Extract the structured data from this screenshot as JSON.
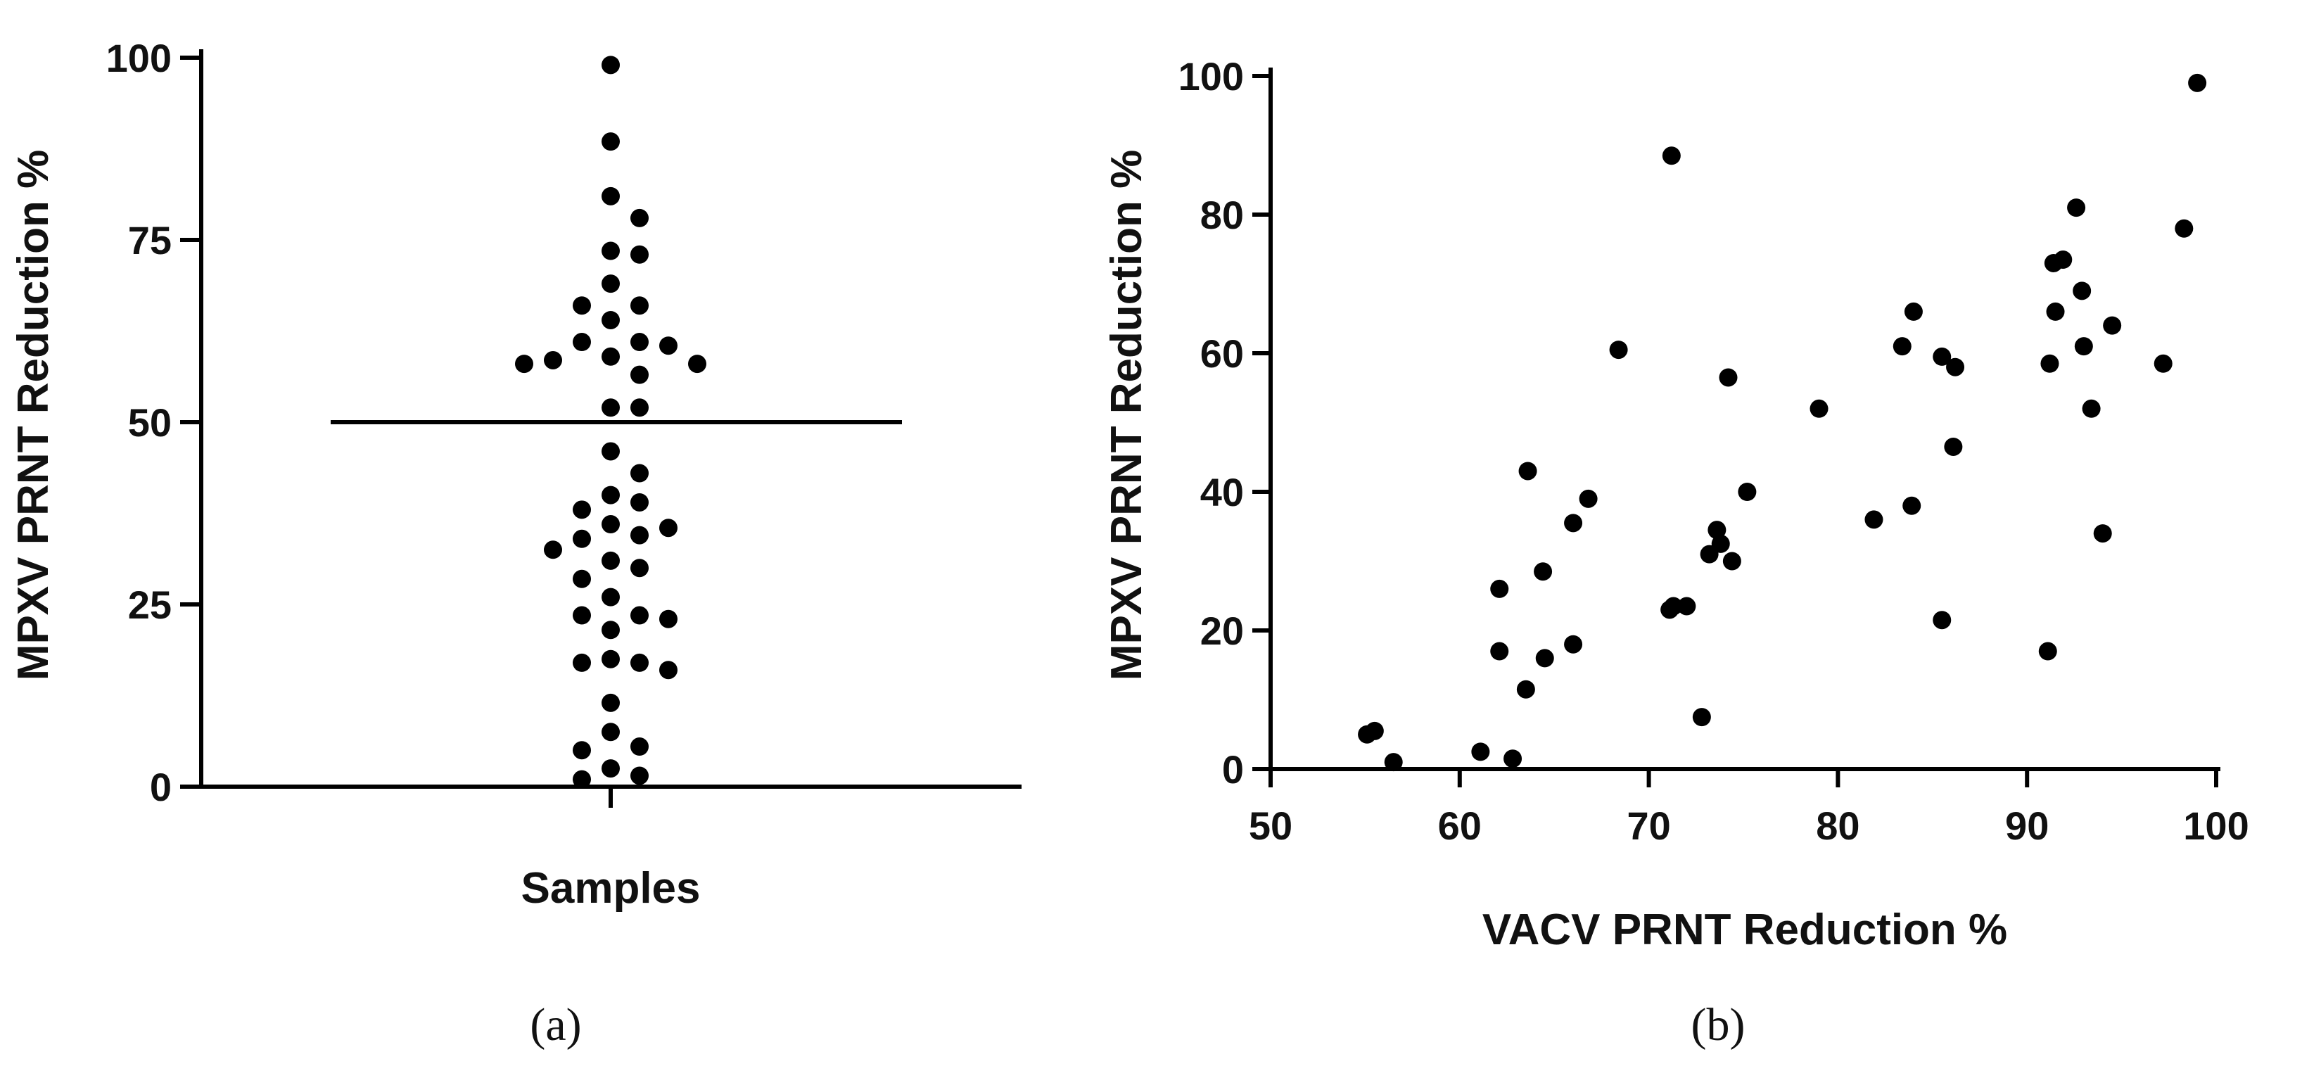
{
  "chart_data": [
    {
      "panel_label": "(a)",
      "type": "scatter",
      "subtype": "dot-strip",
      "xlabel": "Samples",
      "ylabel": "MPXV PRNT Reduction %",
      "ylim": [
        0,
        100
      ],
      "yticks": [
        0,
        25,
        50,
        75,
        100
      ],
      "xticks": [
        ""
      ],
      "mean_line": 50,
      "values": [
        99,
        88.5,
        81,
        78,
        73.5,
        73,
        69,
        66,
        66,
        64,
        61,
        60.5,
        61,
        59,
        58.5,
        58,
        58,
        56.5,
        52,
        52,
        46,
        43,
        40,
        39,
        38,
        36,
        35.5,
        34.5,
        34,
        32.5,
        31,
        30,
        28.5,
        26,
        23.5,
        23.5,
        23,
        21.5,
        17.5,
        17,
        17,
        16,
        11.5,
        7.5,
        5,
        5.5,
        2.5,
        1.5,
        1
      ]
    },
    {
      "panel_label": "(b)",
      "type": "scatter",
      "xlabel": "VACV PRNT Reduction %",
      "ylabel": "MPXV PRNT Reduction %",
      "xlim": [
        50,
        100
      ],
      "ylim": [
        0,
        100
      ],
      "xticks": [
        50,
        60,
        70,
        80,
        90,
        100
      ],
      "yticks": [
        0,
        20,
        40,
        60,
        80,
        100
      ],
      "points": [
        {
          "x": 99,
          "y": 99
        },
        {
          "x": 98.3,
          "y": 78
        },
        {
          "x": 97.2,
          "y": 58.5
        },
        {
          "x": 94.5,
          "y": 64
        },
        {
          "x": 94,
          "y": 34
        },
        {
          "x": 93.4,
          "y": 52
        },
        {
          "x": 93,
          "y": 61
        },
        {
          "x": 92.9,
          "y": 69
        },
        {
          "x": 92.6,
          "y": 81
        },
        {
          "x": 91.9,
          "y": 73.5
        },
        {
          "x": 91.4,
          "y": 73
        },
        {
          "x": 91.5,
          "y": 66
        },
        {
          "x": 91.2,
          "y": 58.5
        },
        {
          "x": 91.1,
          "y": 17
        },
        {
          "x": 86.2,
          "y": 58
        },
        {
          "x": 86.1,
          "y": 46.5
        },
        {
          "x": 85.5,
          "y": 59.5
        },
        {
          "x": 85.5,
          "y": 21.5
        },
        {
          "x": 84,
          "y": 66
        },
        {
          "x": 83.9,
          "y": 38
        },
        {
          "x": 83.4,
          "y": 61
        },
        {
          "x": 81.9,
          "y": 36
        },
        {
          "x": 79,
          "y": 52
        },
        {
          "x": 75.2,
          "y": 40
        },
        {
          "x": 74.4,
          "y": 30
        },
        {
          "x": 74.2,
          "y": 56.5
        },
        {
          "x": 73.8,
          "y": 32.5
        },
        {
          "x": 73.6,
          "y": 34.5
        },
        {
          "x": 73.2,
          "y": 31
        },
        {
          "x": 72.8,
          "y": 7.5
        },
        {
          "x": 72,
          "y": 23.5
        },
        {
          "x": 71.3,
          "y": 23.5
        },
        {
          "x": 71.1,
          "y": 23
        },
        {
          "x": 71.2,
          "y": 88.5
        },
        {
          "x": 68.4,
          "y": 60.5
        },
        {
          "x": 66.8,
          "y": 39
        },
        {
          "x": 66,
          "y": 35.5
        },
        {
          "x": 66,
          "y": 18
        },
        {
          "x": 64.4,
          "y": 28.5
        },
        {
          "x": 64.5,
          "y": 16
        },
        {
          "x": 63.6,
          "y": 43
        },
        {
          "x": 63.5,
          "y": 11.5
        },
        {
          "x": 62.1,
          "y": 26
        },
        {
          "x": 62.1,
          "y": 17
        },
        {
          "x": 62.8,
          "y": 1.5
        },
        {
          "x": 61.1,
          "y": 2.5
        },
        {
          "x": 56.5,
          "y": 1
        },
        {
          "x": 55.5,
          "y": 5.5
        },
        {
          "x": 55.1,
          "y": 5
        }
      ]
    }
  ]
}
